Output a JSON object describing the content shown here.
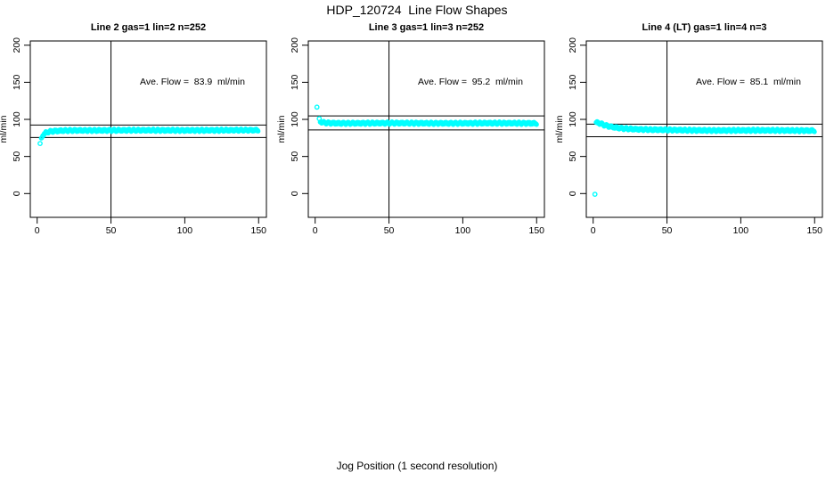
{
  "page": {
    "title": "HDP_120724  Line Flow Shapes",
    "xlabel": "Jog Position (1 second resolution)",
    "background_color": "#ffffff",
    "axis_color": "#000000",
    "point_color": "#00ffff"
  },
  "chart_data": [
    {
      "type": "scatter",
      "title": "Line 2 gas=1 lin=2 n=252",
      "annotation": "Ave. Flow =  83.9  ml/min",
      "ave_flow_ml_min": 83.9,
      "ylabel": "ml/min",
      "xlim": [
        0,
        150
      ],
      "ylim": [
        0,
        200
      ],
      "xticks": [
        0,
        50,
        100,
        150
      ],
      "yticks": [
        0,
        50,
        100,
        150,
        200
      ],
      "grid": false,
      "vline_x": 50,
      "hlines": [
        92.3,
        75.5
      ],
      "outliers": [
        [
          2,
          67.5
        ]
      ],
      "band_profile": [
        [
          2.8,
          73
        ],
        [
          3.5,
          77.5
        ],
        [
          4.5,
          80
        ],
        [
          6,
          82
        ],
        [
          8,
          83.3
        ],
        [
          11,
          84.2
        ],
        [
          16,
          84.8
        ],
        [
          25,
          85.2
        ],
        [
          150,
          85.4
        ]
      ]
    },
    {
      "type": "scatter",
      "title": "Line 3 gas=1 lin=3 n=252",
      "annotation": "Ave. Flow =  95.2  ml/min",
      "ave_flow_ml_min": 95.2,
      "ylabel": "ml/min",
      "xlim": [
        0,
        150
      ],
      "ylim": [
        0,
        200
      ],
      "xticks": [
        0,
        50,
        100,
        150
      ],
      "yticks": [
        0,
        50,
        100,
        150,
        200
      ],
      "grid": false,
      "vline_x": 50,
      "hlines": [
        104.7,
        85.7
      ],
      "outliers": [
        [
          1.2,
          116.5
        ],
        [
          2.8,
          101
        ]
      ],
      "band_profile": [
        [
          3.4,
          97.3
        ],
        [
          5,
          96
        ],
        [
          8,
          95.3
        ],
        [
          15,
          94.9
        ],
        [
          150,
          94.8
        ]
      ]
    },
    {
      "type": "scatter",
      "title": "Line 4 (LT) gas=1 lin=4 n=3",
      "annotation": "Ave. Flow =  85.1  ml/min",
      "ave_flow_ml_min": 85.1,
      "ylabel": "ml/min",
      "xlim": [
        0,
        150
      ],
      "ylim": [
        0,
        200
      ],
      "xticks": [
        0,
        50,
        100,
        150
      ],
      "yticks": [
        0,
        50,
        100,
        150,
        200
      ],
      "grid": false,
      "vline_x": 50,
      "hlines": [
        93.6,
        76.6
      ],
      "outliers": [
        [
          1.2,
          -1
        ]
      ],
      "band_profile": [
        [
          2,
          95
        ],
        [
          3,
          95.8
        ],
        [
          5,
          94.4
        ],
        [
          7,
          93
        ],
        [
          9,
          91.6
        ],
        [
          12,
          90.2
        ],
        [
          15,
          89.2
        ],
        [
          19,
          88.2
        ],
        [
          24,
          87.3
        ],
        [
          30,
          86.6
        ],
        [
          40,
          86
        ],
        [
          55,
          85.6
        ],
        [
          80,
          85.2
        ],
        [
          150,
          85
        ]
      ]
    }
  ]
}
